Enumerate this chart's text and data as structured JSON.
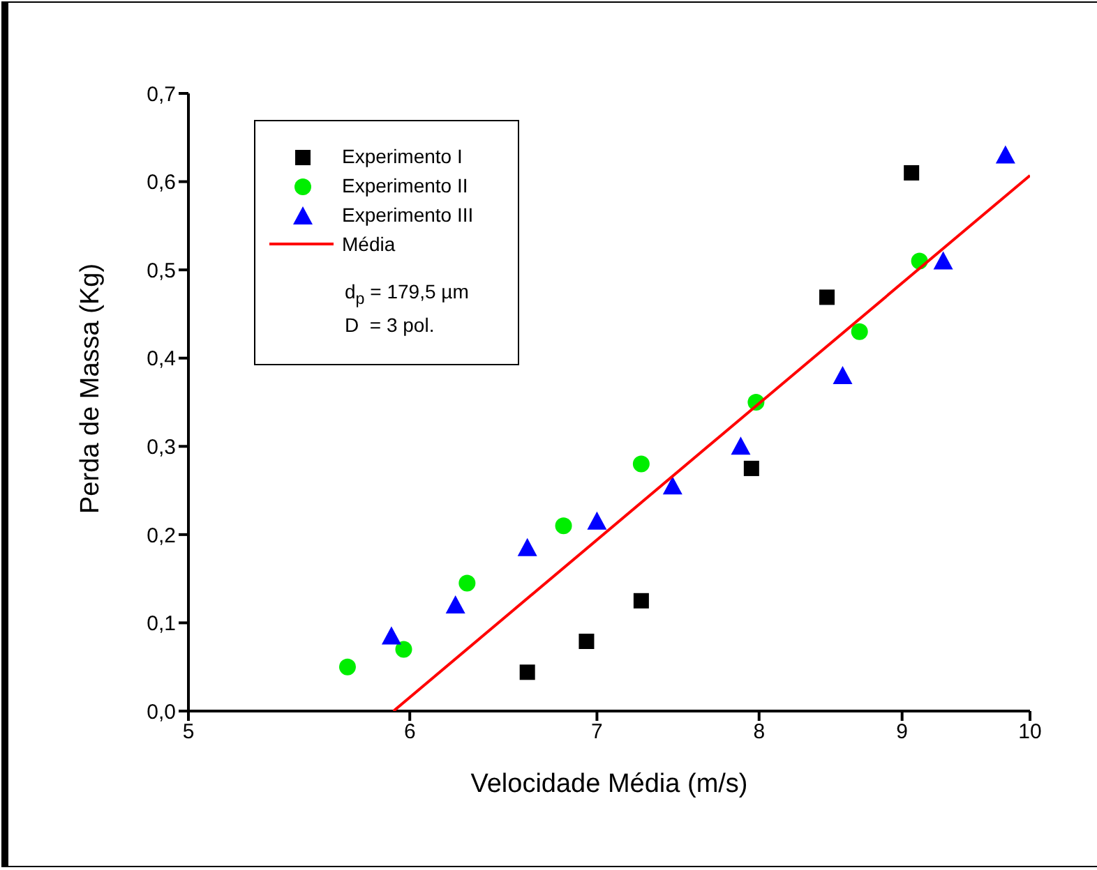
{
  "chart_data": {
    "type": "scatter",
    "xlabel": "Velocidade Média (m/s)",
    "ylabel": "Perda de Massa (Kg)",
    "log": "x",
    "xlim": [
      5,
      10
    ],
    "xticks": [
      5,
      6,
      7,
      8,
      9,
      10
    ],
    "ylim": [
      0,
      0.7
    ],
    "yticks": [
      {
        "value": 0,
        "label": "0,0"
      },
      {
        "value": 0.1,
        "label": "0,1"
      },
      {
        "value": 0.2,
        "label": "0,2"
      },
      {
        "value": 0.3,
        "label": "0,3"
      },
      {
        "value": 0.4,
        "label": "0,4"
      },
      {
        "value": 0.5,
        "label": "0,5"
      },
      {
        "value": 0.6,
        "label": "0,6"
      },
      {
        "value": 0.7,
        "label": "0,7"
      }
    ],
    "grid": false,
    "legend": "top left",
    "annotations": [
      "d$_{p}$ = 179,5 µm",
      "D  = 3 pol."
    ],
    "series": [
      {
        "name": "Experimento I",
        "marker": "square",
        "color": "#000000",
        "x": [
          6.61,
          6.94,
          7.26,
          7.95,
          8.46,
          9.07
        ],
        "values": [
          0.044,
          0.079,
          0.125,
          0.275,
          0.469,
          0.61
        ]
      },
      {
        "name": "Experimento II",
        "marker": "circle",
        "color": "#00ee00",
        "x": [
          5.7,
          5.97,
          6.29,
          6.81,
          7.26,
          7.98,
          8.69,
          9.13
        ],
        "values": [
          0.05,
          0.07,
          0.145,
          0.21,
          0.28,
          0.35,
          0.43,
          0.51
        ]
      },
      {
        "name": "Experimento III",
        "marker": "triangle",
        "color": "#0000ff",
        "x": [
          5.91,
          6.23,
          6.61,
          7.0,
          7.45,
          7.88,
          8.57,
          9.31,
          9.8
        ],
        "values": [
          0.085,
          0.12,
          0.185,
          0.215,
          0.255,
          0.3,
          0.38,
          0.51,
          0.63
        ]
      },
      {
        "name": "Média",
        "type": "line",
        "marker": "none",
        "color": "#ff0000",
        "x": [
          5.92,
          10
        ],
        "values": [
          0,
          0.607
        ]
      }
    ]
  }
}
